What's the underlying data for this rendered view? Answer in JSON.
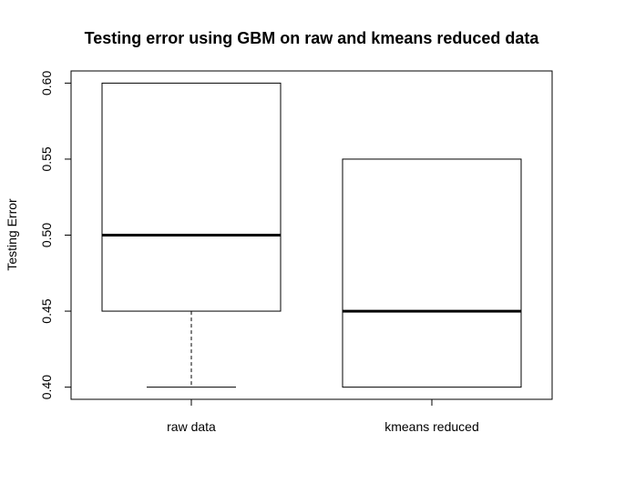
{
  "chart_data": {
    "type": "boxplot",
    "title": "Testing error using GBM on raw and kmeans reduced data",
    "xlabel": "",
    "ylabel": "Testing Error",
    "ylim": [
      0.392,
      0.608
    ],
    "yticks": [
      "0.40",
      "0.45",
      "0.50",
      "0.55",
      "0.60"
    ],
    "grid": false,
    "categories": [
      "raw data",
      "kmeans reduced"
    ],
    "boxes": [
      {
        "label": "raw data",
        "whisker_low": 0.4,
        "q1": 0.45,
        "median": 0.5,
        "q3": 0.6,
        "whisker_high": 0.6
      },
      {
        "label": "kmeans reduced",
        "whisker_low": 0.4,
        "q1": 0.4,
        "median": 0.45,
        "q3": 0.55,
        "whisker_high": 0.55
      }
    ],
    "colors": {
      "box_fill": "#ffffff",
      "stroke": "#000000"
    }
  }
}
